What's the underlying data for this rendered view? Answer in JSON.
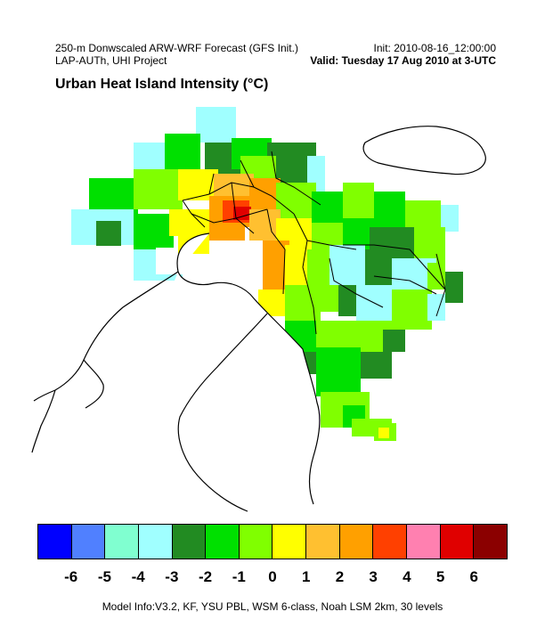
{
  "header": {
    "line1_left": "250-m Donwscaled ARW-WRF Forecast (GFS Init.)",
    "line2_left": "LAP-AUTh, UHI Project",
    "line1_right": "Init: 2010-08-16_12:00:00",
    "line2_right": "Valid: Tuesday 17 Aug 2010 at 3-UTC"
  },
  "title": "Urban Heat Island Intensity (°C)",
  "legend": {
    "colors": [
      "#0000ff",
      "#5080ff",
      "#80ffd0",
      "#a0ffff",
      "#228b22",
      "#00e000",
      "#80ff00",
      "#ffff00",
      "#ffc030",
      "#ffa000",
      "#ff4000",
      "#ff80b0",
      "#e00000",
      "#8b0000"
    ],
    "tick_labels": [
      "-6",
      "-5",
      "-4",
      "-3",
      "-2",
      "-1",
      "0",
      "1",
      "2",
      "3",
      "4",
      "5",
      "6"
    ]
  },
  "footer": "Model Info:V3.2, KF, YSU PBL, WSM 6-class, Noah LSM 2km, 30 levels"
}
